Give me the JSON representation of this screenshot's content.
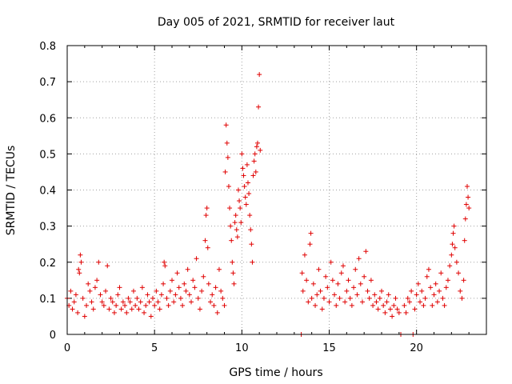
{
  "chart_data": {
    "type": "scatter",
    "title": "Day 005 of 2021, SRMTID for receiver laut",
    "xlabel": "GPS time / hours",
    "ylabel": "SRMTID / TECUs",
    "xlim": [
      0,
      24
    ],
    "ylim": [
      0,
      0.8
    ],
    "xticks": [
      0,
      5,
      10,
      15,
      20
    ],
    "xtick_labels": [
      "0",
      "5",
      "10",
      "15",
      "20"
    ],
    "yticks": [
      0,
      0.1,
      0.2,
      0.3,
      0.4,
      0.5,
      0.6,
      0.7,
      0.8
    ],
    "ytick_labels": [
      "0",
      "0.1",
      "0.2",
      "0.3",
      "0.4",
      "0.5",
      "0.6",
      "0.7",
      "0.8"
    ],
    "grid": true,
    "marker": "plus",
    "color": "#e00000",
    "series": [
      {
        "name": "SRMTID",
        "points": [
          [
            0.0,
            0.1
          ],
          [
            0.1,
            0.08
          ],
          [
            0.2,
            0.12
          ],
          [
            0.3,
            0.07
          ],
          [
            0.4,
            0.09
          ],
          [
            0.5,
            0.11
          ],
          [
            0.6,
            0.06
          ],
          [
            0.65,
            0.18
          ],
          [
            0.7,
            0.17
          ],
          [
            0.75,
            0.22
          ],
          [
            0.8,
            0.2
          ],
          [
            0.9,
            0.1
          ],
          [
            1.0,
            0.05
          ],
          [
            1.1,
            0.08
          ],
          [
            1.2,
            0.14
          ],
          [
            1.3,
            0.12
          ],
          [
            1.4,
            0.09
          ],
          [
            1.5,
            0.07
          ],
          [
            1.6,
            0.13
          ],
          [
            1.7,
            0.15
          ],
          [
            1.8,
            0.2
          ],
          [
            1.9,
            0.11
          ],
          [
            2.0,
            0.09
          ],
          [
            2.1,
            0.08
          ],
          [
            2.2,
            0.12
          ],
          [
            2.3,
            0.19
          ],
          [
            2.4,
            0.07
          ],
          [
            2.5,
            0.1
          ],
          [
            2.6,
            0.09
          ],
          [
            2.7,
            0.06
          ],
          [
            2.8,
            0.08
          ],
          [
            2.9,
            0.11
          ],
          [
            3.0,
            0.13
          ],
          [
            3.1,
            0.07
          ],
          [
            3.2,
            0.09
          ],
          [
            3.3,
            0.08
          ],
          [
            3.4,
            0.06
          ],
          [
            3.5,
            0.1
          ],
          [
            3.6,
            0.09
          ],
          [
            3.7,
            0.07
          ],
          [
            3.8,
            0.12
          ],
          [
            3.9,
            0.08
          ],
          [
            4.0,
            0.1
          ],
          [
            4.1,
            0.07
          ],
          [
            4.2,
            0.09
          ],
          [
            4.3,
            0.13
          ],
          [
            4.4,
            0.06
          ],
          [
            4.5,
            0.08
          ],
          [
            4.6,
            0.11
          ],
          [
            4.7,
            0.09
          ],
          [
            4.8,
            0.05
          ],
          [
            4.9,
            0.1
          ],
          [
            5.0,
            0.08
          ],
          [
            5.1,
            0.12
          ],
          [
            5.2,
            0.09
          ],
          [
            5.3,
            0.07
          ],
          [
            5.4,
            0.11
          ],
          [
            5.5,
            0.14
          ],
          [
            5.55,
            0.2
          ],
          [
            5.6,
            0.19
          ],
          [
            5.7,
            0.1
          ],
          [
            5.8,
            0.08
          ],
          [
            5.9,
            0.12
          ],
          [
            6.0,
            0.15
          ],
          [
            6.1,
            0.09
          ],
          [
            6.2,
            0.11
          ],
          [
            6.3,
            0.17
          ],
          [
            6.4,
            0.13
          ],
          [
            6.5,
            0.1
          ],
          [
            6.6,
            0.08
          ],
          [
            6.7,
            0.14
          ],
          [
            6.8,
            0.12
          ],
          [
            6.9,
            0.18
          ],
          [
            7.0,
            0.11
          ],
          [
            7.1,
            0.09
          ],
          [
            7.2,
            0.15
          ],
          [
            7.3,
            0.13
          ],
          [
            7.4,
            0.21
          ],
          [
            7.5,
            0.1
          ],
          [
            7.6,
            0.07
          ],
          [
            7.7,
            0.12
          ],
          [
            7.8,
            0.16
          ],
          [
            7.9,
            0.26
          ],
          [
            7.95,
            0.33
          ],
          [
            8.0,
            0.35
          ],
          [
            8.05,
            0.24
          ],
          [
            8.1,
            0.14
          ],
          [
            8.2,
            0.09
          ],
          [
            8.3,
            0.11
          ],
          [
            8.4,
            0.08
          ],
          [
            8.5,
            0.13
          ],
          [
            8.6,
            0.06
          ],
          [
            8.7,
            0.18
          ],
          [
            8.8,
            0.12
          ],
          [
            8.9,
            0.1
          ],
          [
            9.0,
            0.08
          ],
          [
            9.05,
            0.45
          ],
          [
            9.1,
            0.58
          ],
          [
            9.15,
            0.53
          ],
          [
            9.2,
            0.49
          ],
          [
            9.25,
            0.41
          ],
          [
            9.3,
            0.35
          ],
          [
            9.35,
            0.3
          ],
          [
            9.4,
            0.26
          ],
          [
            9.45,
            0.2
          ],
          [
            9.5,
            0.17
          ],
          [
            9.55,
            0.14
          ],
          [
            9.6,
            0.31
          ],
          [
            9.65,
            0.33
          ],
          [
            9.7,
            0.29
          ],
          [
            9.75,
            0.27
          ],
          [
            9.8,
            0.4
          ],
          [
            9.85,
            0.37
          ],
          [
            9.9,
            0.35
          ],
          [
            9.95,
            0.31
          ],
          [
            10.0,
            0.5
          ],
          [
            10.05,
            0.46
          ],
          [
            10.1,
            0.44
          ],
          [
            10.15,
            0.41
          ],
          [
            10.2,
            0.38
          ],
          [
            10.25,
            0.36
          ],
          [
            10.3,
            0.47
          ],
          [
            10.35,
            0.42
          ],
          [
            10.4,
            0.39
          ],
          [
            10.45,
            0.33
          ],
          [
            10.5,
            0.29
          ],
          [
            10.55,
            0.25
          ],
          [
            10.6,
            0.2
          ],
          [
            10.65,
            0.44
          ],
          [
            10.7,
            0.48
          ],
          [
            10.75,
            0.5
          ],
          [
            10.8,
            0.45
          ],
          [
            10.85,
            0.52
          ],
          [
            10.9,
            0.53
          ],
          [
            10.95,
            0.63
          ],
          [
            11.0,
            0.72
          ],
          [
            11.05,
            0.51
          ],
          [
            13.4,
            0.0
          ],
          [
            13.45,
            0.17
          ],
          [
            13.5,
            0.12
          ],
          [
            13.6,
            0.22
          ],
          [
            13.7,
            0.15
          ],
          [
            13.8,
            0.09
          ],
          [
            13.9,
            0.25
          ],
          [
            13.95,
            0.28
          ],
          [
            14.0,
            0.1
          ],
          [
            14.1,
            0.14
          ],
          [
            14.2,
            0.08
          ],
          [
            14.3,
            0.11
          ],
          [
            14.4,
            0.18
          ],
          [
            14.5,
            0.12
          ],
          [
            14.6,
            0.07
          ],
          [
            14.7,
            0.1
          ],
          [
            14.8,
            0.16
          ],
          [
            14.9,
            0.13
          ],
          [
            15.0,
            0.09
          ],
          [
            15.1,
            0.2
          ],
          [
            15.2,
            0.15
          ],
          [
            15.3,
            0.11
          ],
          [
            15.4,
            0.08
          ],
          [
            15.5,
            0.14
          ],
          [
            15.6,
            0.1
          ],
          [
            15.7,
            0.17
          ],
          [
            15.8,
            0.19
          ],
          [
            15.9,
            0.09
          ],
          [
            16.0,
            0.12
          ],
          [
            16.1,
            0.15
          ],
          [
            16.2,
            0.1
          ],
          [
            16.3,
            0.08
          ],
          [
            16.4,
            0.13
          ],
          [
            16.5,
            0.18
          ],
          [
            16.6,
            0.11
          ],
          [
            16.7,
            0.21
          ],
          [
            16.8,
            0.14
          ],
          [
            16.9,
            0.09
          ],
          [
            17.0,
            0.16
          ],
          [
            17.1,
            0.23
          ],
          [
            17.2,
            0.12
          ],
          [
            17.3,
            0.1
          ],
          [
            17.4,
            0.15
          ],
          [
            17.5,
            0.08
          ],
          [
            17.6,
            0.11
          ],
          [
            17.7,
            0.09
          ],
          [
            17.8,
            0.07
          ],
          [
            17.9,
            0.1
          ],
          [
            18.0,
            0.12
          ],
          [
            18.1,
            0.08
          ],
          [
            18.2,
            0.06
          ],
          [
            18.3,
            0.09
          ],
          [
            18.4,
            0.11
          ],
          [
            18.5,
            0.07
          ],
          [
            18.6,
            0.05
          ],
          [
            18.7,
            0.08
          ],
          [
            18.8,
            0.1
          ],
          [
            18.9,
            0.07
          ],
          [
            19.0,
            0.06
          ],
          [
            19.1,
            0.0
          ],
          [
            19.3,
            0.08
          ],
          [
            19.4,
            0.06
          ],
          [
            19.5,
            0.1
          ],
          [
            19.6,
            0.09
          ],
          [
            19.7,
            0.12
          ],
          [
            19.8,
            0.0
          ],
          [
            19.9,
            0.07
          ],
          [
            20.0,
            0.11
          ],
          [
            20.1,
            0.14
          ],
          [
            20.2,
            0.09
          ],
          [
            20.3,
            0.12
          ],
          [
            20.4,
            0.08
          ],
          [
            20.5,
            0.1
          ],
          [
            20.6,
            0.16
          ],
          [
            20.7,
            0.18
          ],
          [
            20.8,
            0.13
          ],
          [
            20.9,
            0.08
          ],
          [
            21.0,
            0.11
          ],
          [
            21.1,
            0.14
          ],
          [
            21.2,
            0.09
          ],
          [
            21.3,
            0.12
          ],
          [
            21.4,
            0.17
          ],
          [
            21.5,
            0.1
          ],
          [
            21.6,
            0.08
          ],
          [
            21.7,
            0.13
          ],
          [
            21.8,
            0.15
          ],
          [
            21.9,
            0.19
          ],
          [
            22.0,
            0.22
          ],
          [
            22.05,
            0.25
          ],
          [
            22.1,
            0.28
          ],
          [
            22.15,
            0.3
          ],
          [
            22.2,
            0.24
          ],
          [
            22.3,
            0.2
          ],
          [
            22.4,
            0.17
          ],
          [
            22.5,
            0.12
          ],
          [
            22.6,
            0.1
          ],
          [
            22.7,
            0.15
          ],
          [
            22.75,
            0.26
          ],
          [
            22.8,
            0.32
          ],
          [
            22.85,
            0.36
          ],
          [
            22.9,
            0.41
          ],
          [
            22.95,
            0.38
          ],
          [
            23.0,
            0.35
          ]
        ]
      }
    ]
  }
}
